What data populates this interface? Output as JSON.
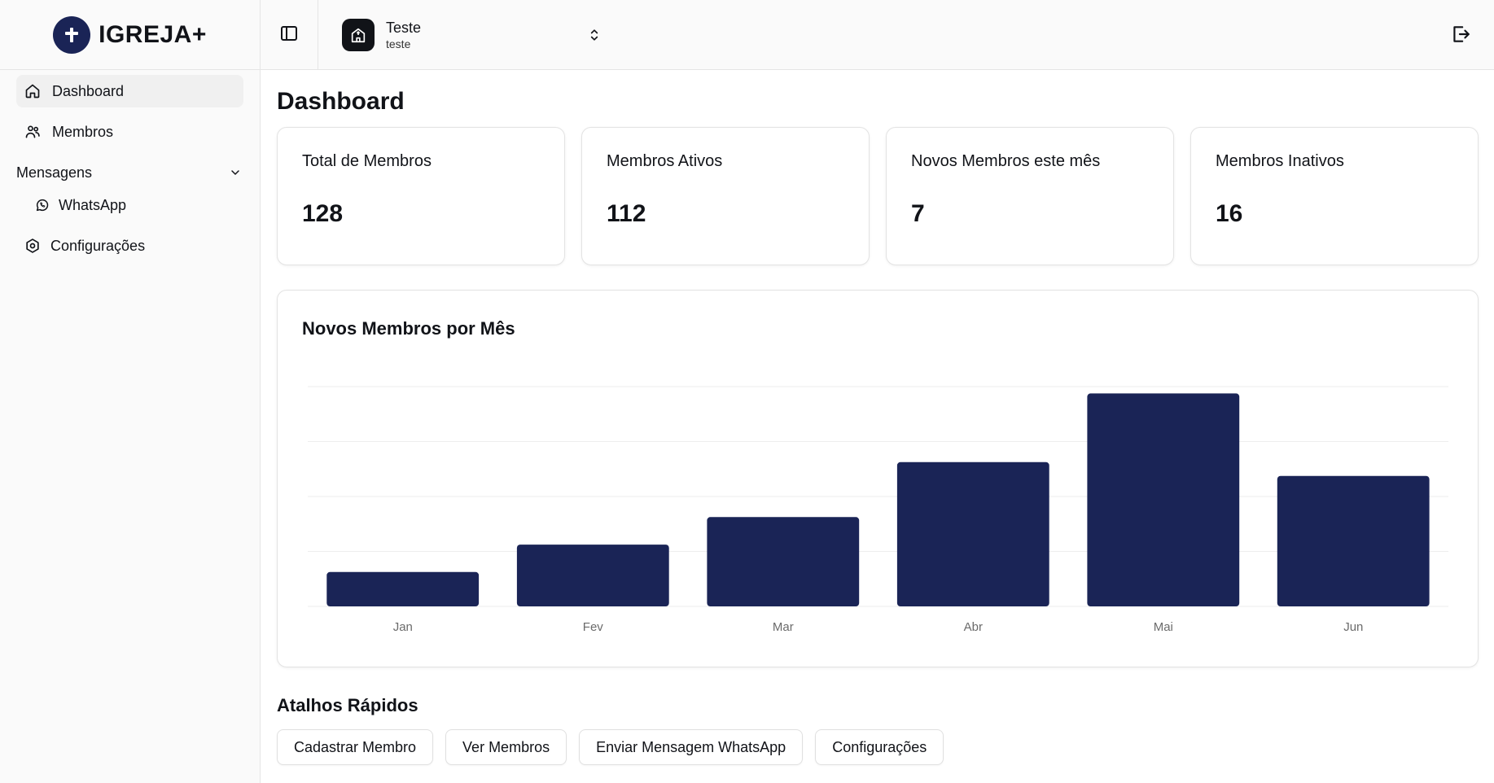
{
  "brand": {
    "name": "IGREJA+"
  },
  "sidebar": {
    "items": [
      {
        "label": "Dashboard",
        "icon": "home-icon"
      },
      {
        "label": "Membros",
        "icon": "users-icon"
      }
    ],
    "group": {
      "label": "Mensagens",
      "items": [
        {
          "label": "WhatsApp",
          "icon": "whatsapp-icon"
        }
      ]
    },
    "settings": {
      "label": "Configurações",
      "icon": "settings-icon"
    }
  },
  "topbar": {
    "org_name": "Teste",
    "org_sub": "teste"
  },
  "page": {
    "title": "Dashboard"
  },
  "stats": [
    {
      "label": "Total de Membros",
      "value": "128"
    },
    {
      "label": "Membros Ativos",
      "value": "112"
    },
    {
      "label": "Novos Membros este mês",
      "value": "7"
    },
    {
      "label": "Membros Inativos",
      "value": "16"
    }
  ],
  "chart": {
    "title": "Novos Membros por Mês"
  },
  "chart_data": {
    "type": "bar",
    "categories": [
      "Jan",
      "Fev",
      "Mar",
      "Abr",
      "Mai",
      "Jun"
    ],
    "values": [
      5,
      9,
      13,
      21,
      31,
      19
    ],
    "ylim": [
      0,
      32
    ],
    "grid": true,
    "color": "#1a2456"
  },
  "shortcuts": {
    "title": "Atalhos Rápidos",
    "buttons": [
      "Cadastrar Membro",
      "Ver Membros",
      "Enviar Mensagem WhatsApp",
      "Configurações"
    ]
  }
}
